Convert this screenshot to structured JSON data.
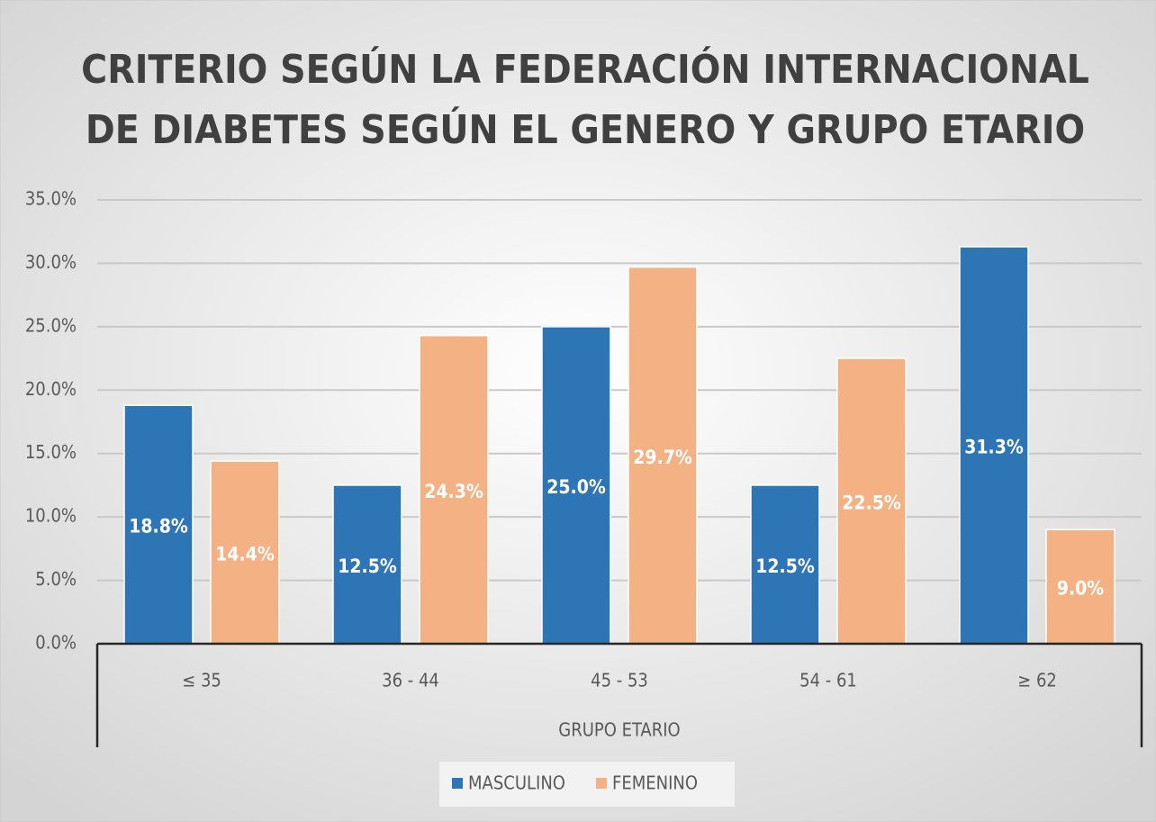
{
  "chart_data": {
    "type": "bar",
    "title": [
      "CRITERIO SEGÚN LA FEDERACIÓN INTERNACIONAL",
      "DE DIABETES SEGÚN EL GENERO Y GRUPO ETARIO"
    ],
    "x_label": "GRUPO ETARIO",
    "categories": [
      "≤ 35",
      "36 - 44",
      "45 - 53",
      "54 - 61",
      "≥ 62"
    ],
    "series": [
      {
        "name": "MASCULINO",
        "color": "#2e75b6",
        "values": [
          18.8,
          12.5,
          25.0,
          12.5,
          31.3
        ],
        "value_labels": [
          "18.8%",
          "12.5%",
          "25.0%",
          "12.5%",
          "31.3%"
        ]
      },
      {
        "name": "FEMENINO",
        "color": "#f4b183",
        "values": [
          14.4,
          24.3,
          29.7,
          22.5,
          9.0
        ],
        "value_labels": [
          "14.4%",
          "24.3%",
          "29.7%",
          "22.5%",
          "9.0%"
        ]
      }
    ],
    "ylim": [
      0,
      35
    ],
    "yticks": [
      {
        "value": 0,
        "label": "0.0%"
      },
      {
        "value": 5,
        "label": "5.0%"
      },
      {
        "value": 10,
        "label": "10.0%"
      },
      {
        "value": 15,
        "label": "15.0%"
      },
      {
        "value": 20,
        "label": "20.0%"
      },
      {
        "value": 25,
        "label": "25.0%"
      },
      {
        "value": 30,
        "label": "30.0%"
      },
      {
        "value": 35,
        "label": "35.0%"
      }
    ],
    "grid": true,
    "legend": "bottom"
  }
}
